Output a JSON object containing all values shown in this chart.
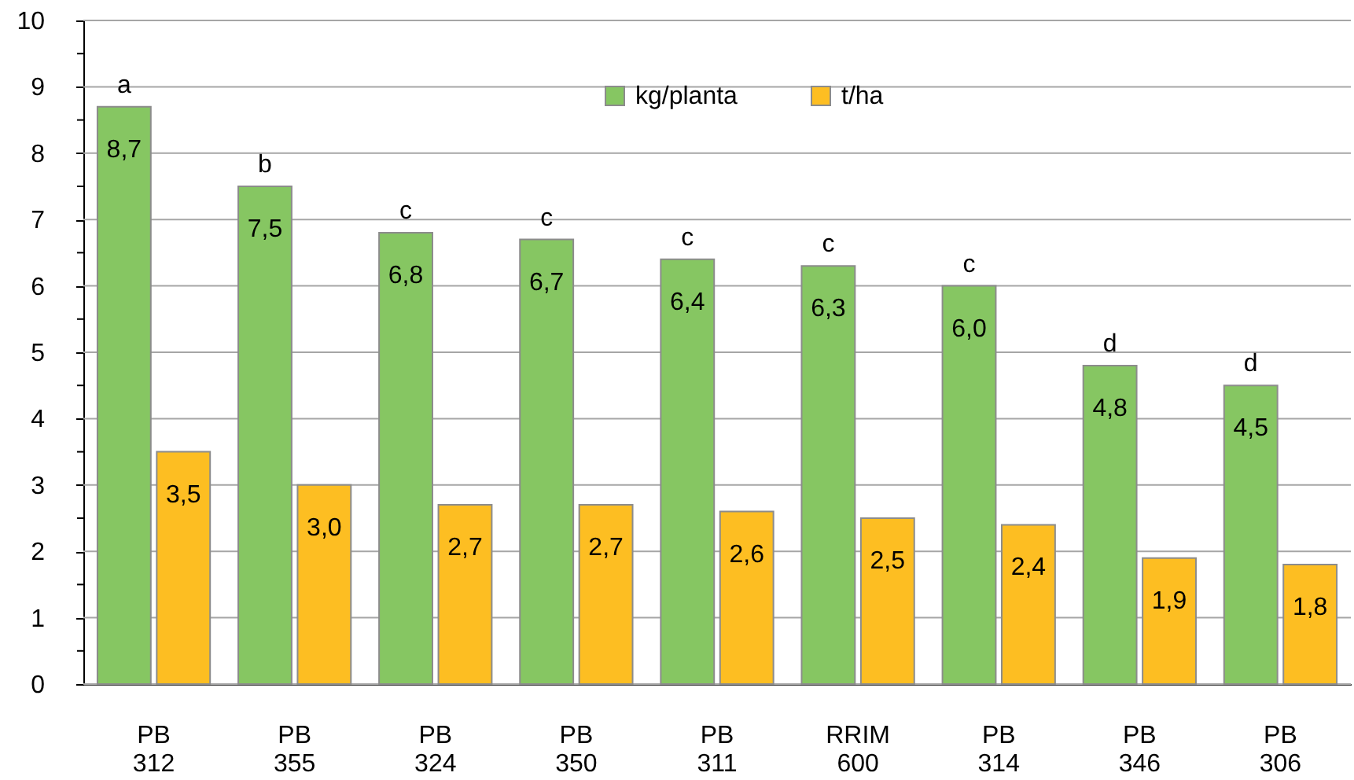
{
  "chart_data": {
    "type": "bar",
    "categories": [
      "PB 312",
      "PB 355",
      "PB 324",
      "PB 350",
      "PB 311",
      "RRIM 600",
      "PB 314",
      "PB 346",
      "PB 306"
    ],
    "series": [
      {
        "name": "kg/planta",
        "color": "#86c662",
        "values": [
          8.7,
          7.5,
          6.8,
          6.7,
          6.4,
          6.3,
          6.0,
          4.8,
          4.5
        ],
        "value_labels": [
          "8,7",
          "7,5",
          "6,8",
          "6,7",
          "6,4",
          "6,3",
          "6,0",
          "4,8",
          "4,5"
        ]
      },
      {
        "name": "t/ha",
        "color": "#fdbe22",
        "values": [
          3.5,
          3.0,
          2.7,
          2.7,
          2.6,
          2.5,
          2.4,
          1.9,
          1.8
        ],
        "value_labels": [
          "3,5",
          "3,0",
          "2,7",
          "2,7",
          "2,6",
          "2,5",
          "2,4",
          "1,9",
          "1,8"
        ]
      }
    ],
    "ylim": [
      0,
      10
    ],
    "yticks": [
      0,
      {
        "value": 0.5,
        "label": null
      },
      1,
      {
        "value": 1.5,
        "label": null
      },
      2,
      {
        "value": 2.5,
        "label": null
      },
      3,
      {
        "value": 3.5,
        "label": null
      },
      4,
      {
        "value": 4.5,
        "label": null
      },
      5,
      {
        "value": 5.5,
        "label": null
      },
      6,
      {
        "value": 6.5,
        "label": null
      },
      7,
      {
        "value": 7.5,
        "label": null
      },
      8,
      {
        "value": 8.5,
        "label": null
      },
      9,
      {
        "value": 9.5,
        "label": null
      },
      10
    ],
    "grid": "y",
    "legend": "top",
    "annotations": [
      {
        "text": "a",
        "x": "PB 312",
        "y": 8.7
      },
      {
        "text": "b",
        "x": "PB 355",
        "y": 7.5
      },
      {
        "text": "c",
        "x": "PB 324",
        "y": 6.8
      },
      {
        "text": "c",
        "x": "PB 350",
        "y": 6.7
      },
      {
        "text": "c",
        "x": "PB 311",
        "y": 6.4
      },
      {
        "text": "c",
        "x": "RRIM 600",
        "y": 6.3
      },
      {
        "text": "c",
        "x": "PB 314",
        "y": 6.0
      },
      {
        "text": "d",
        "x": "PB 346",
        "y": 4.8
      },
      {
        "text": "d",
        "x": "PB 306",
        "y": 4.5
      }
    ]
  }
}
